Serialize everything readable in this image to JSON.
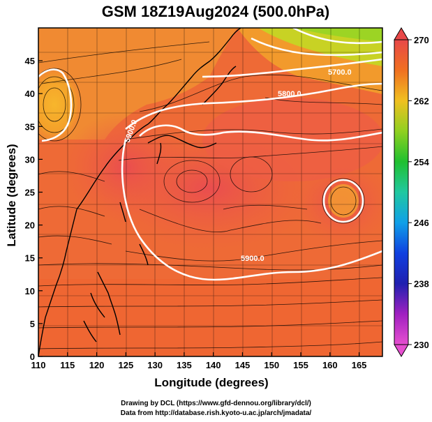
{
  "title": "GSM 18Z19Aug2024 (500.0hPa)",
  "map": {
    "xlabel": "Longitude (degrees)",
    "ylabel": "Latitude  (degrees)",
    "xlim": [
      110,
      169
    ],
    "ylim": [
      0,
      50
    ],
    "xticks": [
      110,
      115,
      120,
      125,
      130,
      135,
      140,
      145,
      150,
      155,
      160,
      165
    ],
    "yticks": [
      0,
      5,
      10,
      15,
      20,
      25,
      30,
      35,
      40,
      45
    ],
    "grid": true,
    "colorbar": {
      "min": 230,
      "max": 270,
      "ticks": [
        230,
        238,
        246,
        254,
        262,
        270
      ],
      "extend": "both"
    },
    "contour_labels": [
      "5700.0",
      "5800.0",
      "5900.0",
      "5900.0",
      "5800.0"
    ]
  },
  "credits": {
    "line1": "Drawing by DCL (https://www.gfd-dennou.org/library/dcl/)",
    "line2": "Data from http://database.rish.kyoto-u.ac.jp/arch/jmadata/"
  }
}
